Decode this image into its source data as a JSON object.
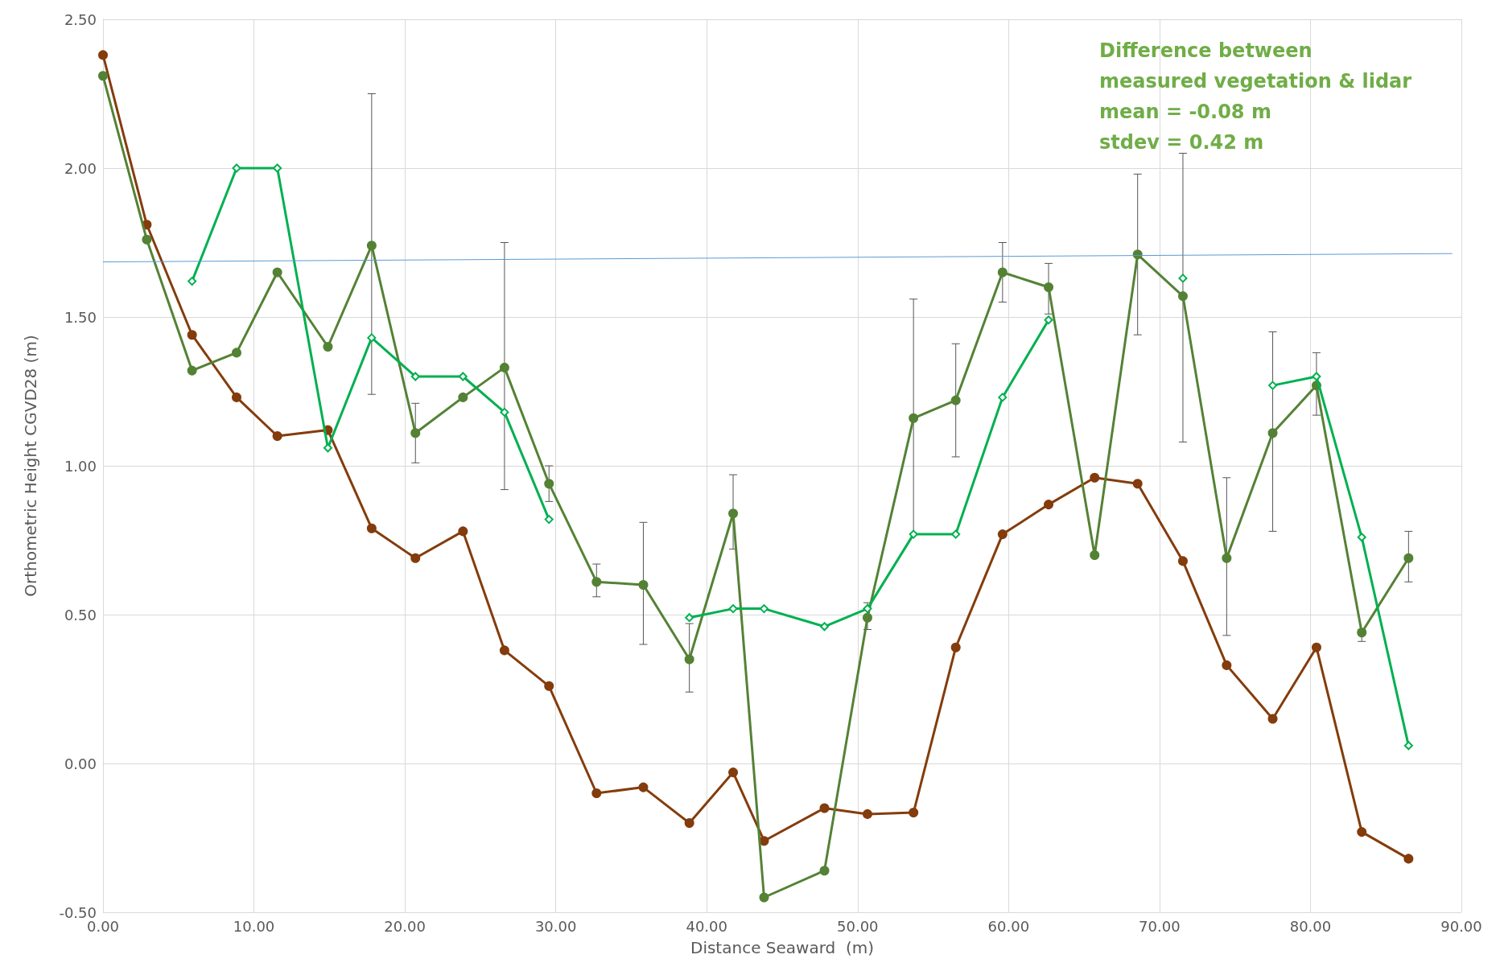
{
  "chart_data": {
    "type": "line",
    "xlabel": "Distance Seaward  (m)",
    "ylabel": "Orthometric Height CGVD28 (m)",
    "annotations": [
      "Difference between measured vegetation & lidar",
      "mean = -0.08 m",
      "stdev = 0.42 m"
    ],
    "xlim": [
      0,
      90
    ],
    "xticks": [
      {
        "value": 0,
        "label": "0.00"
      },
      {
        "value": 10,
        "label": "10.00"
      },
      {
        "value": 20,
        "label": "20.00"
      },
      {
        "value": 30,
        "label": "30.00"
      },
      {
        "value": 40,
        "label": "40.00"
      },
      {
        "value": 50,
        "label": "50.00"
      },
      {
        "value": 60,
        "label": "60.00"
      },
      {
        "value": 70,
        "label": "70.00"
      },
      {
        "value": 80,
        "label": "80.00"
      },
      {
        "value": 90,
        "label": "90.00"
      }
    ],
    "ylim": [
      -0.5,
      2.5
    ],
    "yticks": [
      {
        "value": -0.5,
        "label": "-0.50"
      },
      {
        "value": 0,
        "label": "0.00"
      },
      {
        "value": 0.5,
        "label": "0.50"
      },
      {
        "value": 1,
        "label": "1.00"
      },
      {
        "value": 1.5,
        "label": "1.50"
      },
      {
        "value": 2,
        "label": "2.00"
      },
      {
        "value": 2.5,
        "label": "2.50"
      }
    ],
    "grid": true,
    "line_style": "solid",
    "x": [
      0,
      2.9,
      5.9,
      8.85,
      11.55,
      14.9,
      17.8,
      20.7,
      23.85,
      26.6,
      29.55,
      32.7,
      35.8,
      38.85,
      41.75,
      43.8,
      47.8,
      50.65,
      53.7,
      56.5,
      59.6,
      62.65,
      65.7,
      68.55,
      71.55,
      74.45,
      77.5,
      80.4,
      83.4,
      86.5
    ],
    "series": [
      {
        "color": "#843c0c",
        "marker": "circle",
        "values": [
          2.38,
          1.81,
          1.44,
          1.23,
          1.1,
          1.12,
          0.79,
          0.69,
          0.78,
          0.38,
          0.26,
          -0.1,
          -0.08,
          -0.2,
          -0.03,
          -0.26,
          -0.15,
          -0.17,
          -0.165,
          0.39,
          0.77,
          0.87,
          0.96,
          0.94,
          0.68,
          0.33,
          0.15,
          0.39,
          -0.23,
          -0.32
        ]
      },
      {
        "color": "#548235",
        "marker": "circle",
        "values": [
          2.31,
          1.76,
          1.32,
          1.38,
          1.65,
          1.4,
          1.74,
          1.11,
          1.23,
          1.33,
          0.94,
          0.61,
          0.6,
          0.35,
          0.84,
          -0.45,
          -0.36,
          0.49,
          1.16,
          1.22,
          1.65,
          1.6,
          0.7,
          1.71,
          1.57,
          0.69,
          1.11,
          1.27,
          0.44,
          0.69
        ],
        "errors": [
          null,
          null,
          null,
          null,
          null,
          null,
          [
            1.24,
            2.25
          ],
          [
            1.01,
            1.21
          ],
          null,
          [
            0.92,
            1.75
          ],
          [
            0.88,
            1.0
          ],
          [
            0.56,
            0.67
          ],
          [
            0.4,
            0.81
          ],
          [
            0.24,
            0.47
          ],
          [
            0.72,
            0.97
          ],
          null,
          null,
          [
            0.45,
            0.54
          ],
          [
            0.77,
            1.56
          ],
          [
            1.03,
            1.41
          ],
          [
            1.55,
            1.75
          ],
          [
            1.51,
            1.68
          ],
          null,
          [
            1.44,
            1.98
          ],
          [
            1.08,
            2.05
          ],
          [
            0.43,
            0.96
          ],
          [
            0.78,
            1.45
          ],
          [
            1.17,
            1.38
          ],
          [
            0.41,
            0.45
          ],
          [
            0.61,
            0.78
          ]
        ]
      },
      {
        "color": "#00b050",
        "marker": "diamond",
        "values": [
          null,
          null,
          1.62,
          2.0,
          2.0,
          1.06,
          1.43,
          1.3,
          1.3,
          1.18,
          0.82,
          null,
          null,
          0.49,
          0.52,
          0.52,
          0.46,
          0.52,
          0.77,
          0.77,
          1.23,
          1.49,
          null,
          null,
          1.63,
          null,
          1.27,
          1.3,
          0.76,
          0.06
        ]
      },
      {
        "type": "line",
        "color": "#5b9bd5",
        "marker": "none",
        "x": [
          0,
          89.4
        ],
        "values": [
          1.685,
          1.713
        ]
      }
    ]
  }
}
